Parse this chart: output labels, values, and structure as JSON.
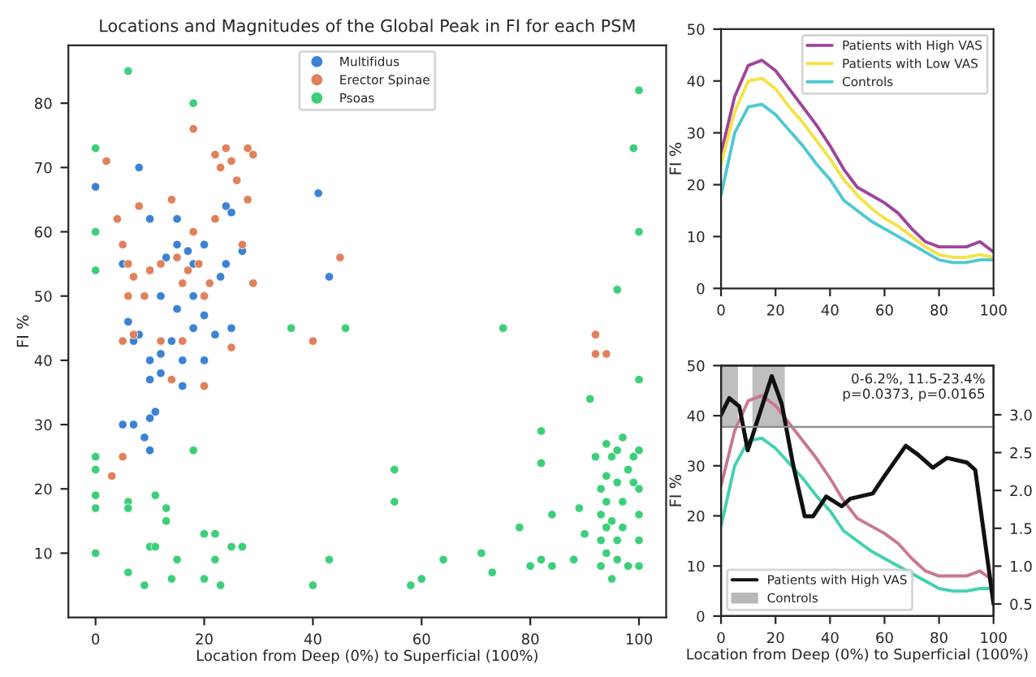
{
  "chart_data": [
    {
      "type": "scatter",
      "title": "Locations and Magnitudes of the Global Peak in FI for each PSM",
      "xlabel": "Location from Deep (0%) to Superficial (100%)",
      "ylabel": "FI %",
      "xlim": [
        -5,
        105
      ],
      "ylim": [
        0,
        89
      ],
      "xticks": [
        0,
        20,
        40,
        60,
        80,
        100
      ],
      "yticks": [
        10,
        20,
        30,
        40,
        50,
        60,
        70,
        80
      ],
      "legend": "top",
      "marker": "circle",
      "grid": false,
      "series": [
        {
          "name": "Multifidus",
          "color": "#3b82d4",
          "x": [
            0,
            5,
            8,
            10,
            13,
            15,
            15,
            17,
            18,
            20,
            23,
            24,
            25,
            27,
            41,
            43,
            12,
            15,
            18,
            22,
            25,
            8,
            10,
            12,
            16,
            20,
            10,
            12,
            16,
            5,
            7,
            10,
            11,
            9,
            10,
            7,
            14,
            6,
            20,
            18,
            24
          ],
          "values": [
            67,
            55,
            70,
            62,
            56,
            62,
            58,
            57,
            55,
            58,
            53,
            64,
            63,
            57,
            66,
            53,
            50,
            48,
            45,
            44,
            45,
            44,
            40,
            41,
            40,
            40,
            37,
            38,
            36,
            30,
            30,
            31,
            32,
            28,
            26,
            43,
            43,
            46,
            47,
            50,
            55
          ]
        },
        {
          "name": "Erector Spinae",
          "color": "#e0815c",
          "x": [
            2,
            4,
            5,
            6,
            6,
            7,
            8,
            9,
            10,
            12,
            14,
            15,
            16,
            17,
            18,
            19,
            20,
            21,
            22,
            23,
            24,
            25,
            26,
            28,
            29,
            28,
            27,
            29,
            22,
            18,
            5,
            7,
            12,
            16,
            20,
            3,
            5,
            14,
            40,
            45,
            92,
            92,
            94,
            25
          ],
          "values": [
            71,
            62,
            58,
            55,
            50,
            53,
            64,
            50,
            54,
            55,
            65,
            56,
            52,
            54,
            60,
            55,
            50,
            52,
            72,
            70,
            73,
            71,
            68,
            73,
            72,
            65,
            58,
            52,
            62,
            76,
            43,
            44,
            43,
            43,
            36,
            22,
            25,
            37,
            43,
            56,
            44,
            41,
            41,
            42
          ]
        },
        {
          "name": "Psoas",
          "color": "#3ccf7a",
          "x": [
            0,
            0,
            0,
            0,
            0,
            6,
            6,
            6,
            9,
            10,
            11,
            11,
            13,
            13,
            14,
            15,
            18,
            20,
            20,
            22,
            22,
            23,
            25,
            27,
            40,
            43,
            55,
            55,
            58,
            60,
            64,
            71,
            73,
            75,
            78,
            80,
            82,
            82,
            82,
            84,
            84,
            88,
            89,
            90,
            91,
            92,
            93,
            93,
            93,
            93,
            94,
            94,
            94,
            94,
            94,
            95,
            95,
            95,
            96,
            96,
            96,
            96,
            97,
            97,
            97,
            98,
            98,
            99,
            99,
            100,
            100,
            100,
            100,
            100,
            100,
            100,
            100,
            99,
            96,
            0,
            6,
            18,
            0,
            0,
            36,
            46
          ],
          "values": [
            25,
            23,
            19,
            17,
            10,
            18,
            17,
            7,
            5,
            11,
            11,
            19,
            17,
            15,
            6,
            9,
            26,
            13,
            6,
            13,
            9,
            5,
            11,
            11,
            5,
            9,
            23,
            18,
            5,
            6,
            9,
            10,
            7,
            45,
            14,
            8,
            29,
            24,
            9,
            16,
            8,
            9,
            17,
            13,
            34,
            25,
            20,
            16,
            12,
            8,
            27,
            22,
            18,
            14,
            10,
            25,
            15,
            6,
            26,
            21,
            12,
            9,
            28,
            18,
            14,
            23,
            8,
            25,
            21,
            26,
            20,
            16,
            12,
            8,
            37,
            60,
            82,
            73,
            51,
            73,
            85,
            80,
            60,
            54,
            45,
            45
          ]
        }
      ]
    },
    {
      "type": "line",
      "ylabel": "FI %",
      "xlim": [
        0,
        100
      ],
      "ylim": [
        0,
        50
      ],
      "xticks": [
        0,
        20,
        40,
        60,
        80,
        100
      ],
      "yticks": [
        0,
        10,
        20,
        30,
        40,
        50
      ],
      "legend": "top right",
      "grid": false,
      "x": [
        0,
        5,
        10,
        15,
        20,
        25,
        30,
        35,
        40,
        45,
        50,
        55,
        60,
        65,
        70,
        75,
        80,
        85,
        90,
        95,
        100
      ],
      "series": [
        {
          "name": "Patients with High VAS",
          "color": "#a0449c",
          "values": [
            26,
            37,
            43,
            44,
            42,
            38.5,
            35,
            31.5,
            27.5,
            23,
            19.5,
            18,
            16.5,
            14.5,
            11.5,
            9,
            8,
            8,
            8,
            9,
            7
          ]
        },
        {
          "name": "Patients with Low VAS",
          "color": "#f2e34a",
          "values": [
            24,
            34,
            40,
            40.5,
            38.5,
            35,
            32,
            28.5,
            25,
            21,
            18,
            15.5,
            13.5,
            12,
            10,
            8,
            6.5,
            6,
            6,
            6.5,
            6
          ]
        },
        {
          "name": "Controls",
          "color": "#4fc9cf",
          "values": [
            18,
            30,
            35,
            35.5,
            33.5,
            30.5,
            27.5,
            24,
            21,
            17,
            15,
            13,
            11.5,
            10,
            8.5,
            7,
            5.5,
            5,
            5,
            5.5,
            5.5
          ]
        }
      ]
    },
    {
      "type": "line",
      "xlabel": "Location from Deep (0%) to Superficial (100%)",
      "ylabel": "FI %",
      "xlim": [
        0,
        100
      ],
      "ylim": [
        0,
        50
      ],
      "xticks": [
        0,
        20,
        40,
        60,
        80,
        100
      ],
      "yticks": [
        0,
        10,
        20,
        30,
        40,
        50
      ],
      "y2lim": [
        0.34,
        3.65
      ],
      "y2ticks": [
        0.5,
        {
          "value": 1,
          "label": "1.0"
        },
        1.5,
        {
          "value": 2,
          "label": "2.0"
        },
        2.5,
        {
          "value": 3,
          "label": "3.0"
        }
      ],
      "legend": "bottom left",
      "grid": false,
      "annotations": [
        "0-6.2%, 11.5-23.4%\np=0.0373, p=0.0165"
      ],
      "ref_lines": [
        {
          "axis": "y2",
          "value": 2.84,
          "color": "#8c8c8c"
        }
      ],
      "bands": [
        {
          "axis": "x",
          "from": 0,
          "to": 6.2,
          "label": "Controls",
          "color": "#8a8a8a"
        },
        {
          "axis": "x",
          "from": 11.5,
          "to": 23.4,
          "color": "#8a8a8a"
        }
      ],
      "series": [
        {
          "color": "#c9788e",
          "x": [
            0,
            5,
            10,
            15,
            20,
            25,
            30,
            35,
            40,
            45,
            50,
            55,
            60,
            65,
            70,
            75,
            80,
            85,
            90,
            95,
            100
          ],
          "values": [
            26,
            37,
            43,
            44,
            42,
            38.5,
            35,
            31.5,
            27.5,
            23,
            19.5,
            18,
            16.5,
            14.5,
            11.5,
            9,
            8,
            8,
            8,
            9,
            7
          ]
        },
        {
          "color": "#43d1b0",
          "x": [
            0,
            5,
            10,
            15,
            20,
            25,
            30,
            35,
            40,
            45,
            50,
            55,
            60,
            65,
            70,
            75,
            80,
            85,
            90,
            95,
            100
          ],
          "values": [
            18,
            30,
            35,
            35.5,
            33.5,
            30.5,
            27.5,
            24,
            21,
            17,
            15,
            13,
            11.5,
            10,
            8.5,
            7,
            5.5,
            5,
            5,
            5.5,
            5.5
          ]
        },
        {
          "name": "Patients with High VAS",
          "color": "#111111",
          "axis": "y2",
          "x": [
            0,
            3,
            6.7,
            9.8,
            18.6,
            22.3,
            26.5,
            30.7,
            33.8,
            38.6,
            44.3,
            47.4,
            55.7,
            60,
            67.8,
            72.4,
            77.7,
            82.9,
            90.2,
            93.3,
            100
          ],
          "values": [
            3.0,
            3.22,
            3.11,
            2.53,
            3.51,
            3.14,
            2.33,
            1.66,
            1.66,
            1.92,
            1.79,
            1.89,
            1.96,
            2.19,
            2.59,
            2.47,
            2.3,
            2.43,
            2.37,
            2.27,
            0.5
          ]
        }
      ]
    }
  ]
}
